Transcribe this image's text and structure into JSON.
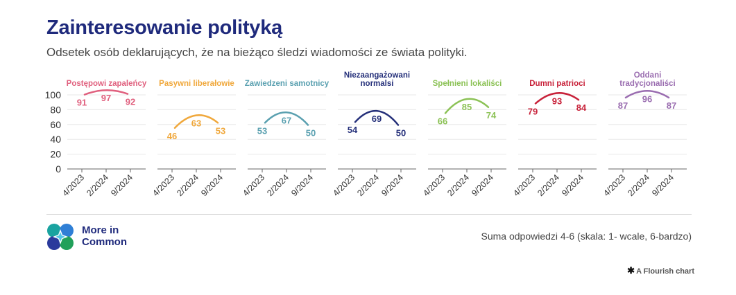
{
  "header": {
    "title": "Zainteresowanie polityką",
    "subtitle": "Odsetek osób deklarujących, że na bieżąco śledzi wiadomości ze świata polityki."
  },
  "footer": {
    "logo_text_line1": "More in",
    "logo_text_line2": "Common",
    "note": "Suma odpowiedzi 4-6 (skala: 1- wcale, 6-bardzo)",
    "flourish_label": "A Flourish chart",
    "flourish_icon": "asterisk-icon"
  },
  "chart_data": {
    "type": "line",
    "x": [
      "4/2023",
      "2/2024",
      "9/2024"
    ],
    "ylim": [
      0,
      100
    ],
    "yticks": [
      0,
      20,
      40,
      60,
      80,
      100
    ],
    "grid": true,
    "series": [
      {
        "name": "Postępowi zapaleńcy",
        "color": "#e0607e",
        "values": [
          91,
          97,
          92
        ]
      },
      {
        "name": "Pasywni liberałowie",
        "color": "#f0a83c",
        "values": [
          46,
          63,
          53
        ]
      },
      {
        "name": "Zawiedzeni samotnicy",
        "color": "#5aa0b0",
        "values": [
          53,
          67,
          50
        ]
      },
      {
        "name": "Niezaangażowani normalsi",
        "color": "#25307a",
        "values": [
          54,
          69,
          50
        ]
      },
      {
        "name": "Spełnieni lokaliści",
        "color": "#8cc256",
        "values": [
          66,
          85,
          74
        ]
      },
      {
        "name": "Dumni patrioci",
        "color": "#c8223a",
        "values": [
          79,
          93,
          84
        ]
      },
      {
        "name": "Oddani tradycjonaliści",
        "color": "#9a6db0",
        "values": [
          87,
          96,
          87
        ]
      }
    ]
  }
}
